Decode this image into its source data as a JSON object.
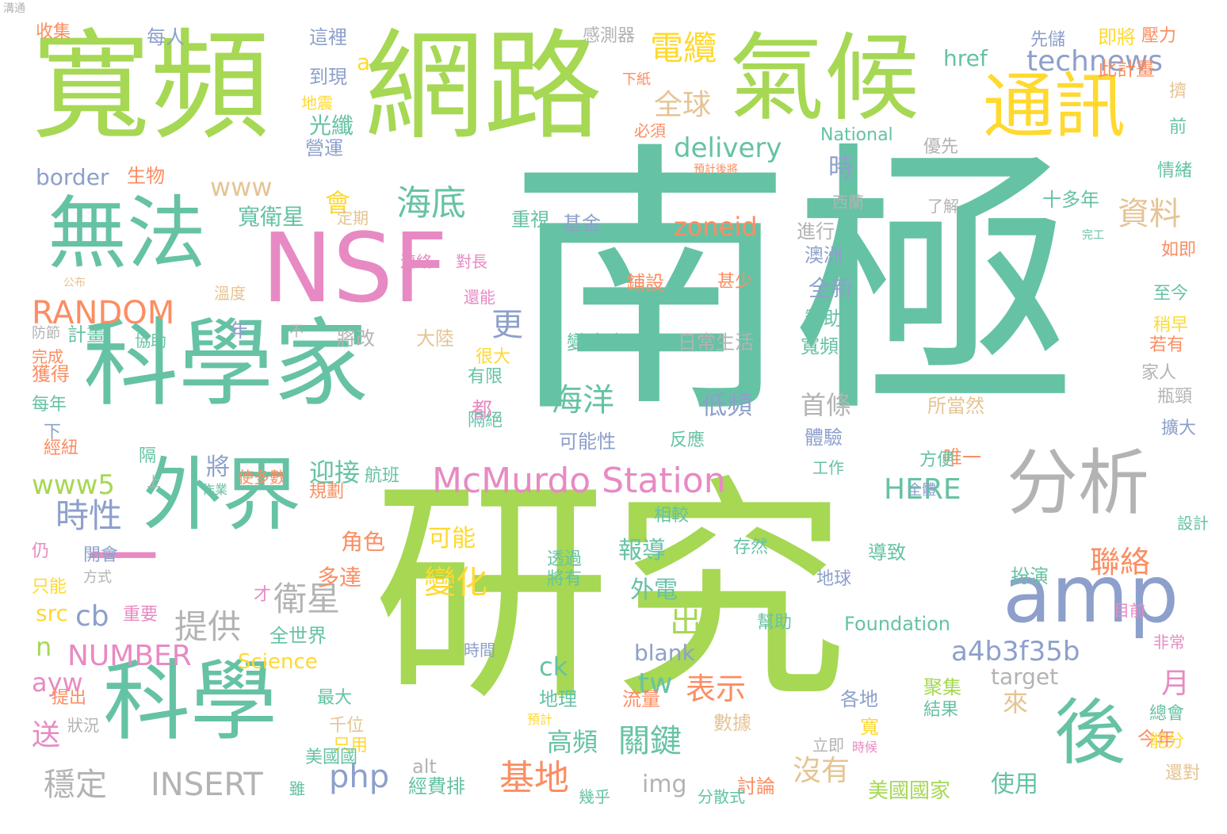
{
  "palette": {
    "teal": "#66c2a5",
    "green": "#a6d854",
    "pink": "#e78ac3",
    "blue": "#8da0cb",
    "orange": "#fc8d62",
    "yellow": "#ffd92f",
    "tan": "#e5c494",
    "gray": "#b3b3b3"
  },
  "words": [
    {
      "text": "南極",
      "color": "teal"
    },
    {
      "text": "研究",
      "color": "green"
    },
    {
      "text": "寬頻",
      "color": "green"
    },
    {
      "text": "網路",
      "color": "green"
    },
    {
      "text": "氣候",
      "color": "green"
    },
    {
      "text": "科學家",
      "color": "teal"
    },
    {
      "text": "科學",
      "color": "teal"
    },
    {
      "text": "NSF",
      "color": "pink"
    },
    {
      "text": "無法",
      "color": "teal"
    },
    {
      "text": "外界",
      "color": "teal"
    },
    {
      "text": "通訊",
      "color": "yellow"
    },
    {
      "text": "分析",
      "color": "gray"
    },
    {
      "text": "後",
      "color": "teal"
    },
    {
      "text": "amp",
      "color": "blue"
    },
    {
      "text": "McMurdo Station",
      "color": "pink"
    },
    {
      "text": "一",
      "color": "pink"
    },
    {
      "text": "technews",
      "color": "blue"
    },
    {
      "text": "電纜",
      "color": "yellow"
    },
    {
      "text": "全球",
      "color": "tan"
    },
    {
      "text": "delivery",
      "color": "teal"
    },
    {
      "text": "海底",
      "color": "teal"
    },
    {
      "text": "資料",
      "color": "tan"
    },
    {
      "text": "RANDOM",
      "color": "orange"
    },
    {
      "text": "海洋",
      "color": "teal"
    },
    {
      "text": "a4b3f35b",
      "color": "blue"
    },
    {
      "text": "時性",
      "color": "blue"
    },
    {
      "text": "NUMBER",
      "color": "pink"
    },
    {
      "text": "INSERT",
      "color": "gray"
    },
    {
      "text": "php",
      "color": "blue"
    },
    {
      "text": "基地",
      "color": "orange"
    },
    {
      "text": "變化",
      "color": "yellow"
    },
    {
      "text": "衛星",
      "color": "gray"
    },
    {
      "text": "提供",
      "color": "gray"
    },
    {
      "text": "表示",
      "color": "orange"
    },
    {
      "text": "關鍵",
      "color": "teal"
    },
    {
      "text": "沒有",
      "color": "tan"
    },
    {
      "text": "聯絡",
      "color": "orange"
    },
    {
      "text": "www5",
      "color": "green"
    },
    {
      "text": "HERE",
      "color": "teal"
    },
    {
      "text": "穩定",
      "color": "gray"
    },
    {
      "text": "cb",
      "color": "blue"
    },
    {
      "text": "tw",
      "color": "teal"
    },
    {
      "text": "zoneid",
      "color": "orange"
    },
    {
      "text": "www",
      "color": "tan"
    },
    {
      "text": "border",
      "color": "blue"
    },
    {
      "text": "a",
      "color": "yellow"
    },
    {
      "text": "href",
      "color": "teal"
    },
    {
      "text": "時",
      "color": "blue"
    },
    {
      "text": "會",
      "color": "yellow"
    },
    {
      "text": "寬衛星",
      "color": "teal"
    },
    {
      "text": "全新",
      "color": "blue"
    },
    {
      "text": "光纖",
      "color": "teal"
    },
    {
      "text": "更",
      "color": "blue"
    },
    {
      "text": "低頻",
      "color": "blue"
    },
    {
      "text": "高頻",
      "color": "teal"
    },
    {
      "text": "首條",
      "color": "gray"
    },
    {
      "text": "出",
      "color": "green"
    },
    {
      "text": "迎接",
      "color": "teal"
    },
    {
      "text": "報導",
      "color": "teal"
    },
    {
      "text": "外電",
      "color": "teal"
    },
    {
      "text": "將",
      "color": "blue"
    },
    {
      "text": "可能",
      "color": "yellow"
    },
    {
      "text": "角色",
      "color": "orange"
    },
    {
      "text": "多達",
      "color": "orange"
    },
    {
      "text": "月",
      "color": "pink"
    },
    {
      "text": "來",
      "color": "tan"
    },
    {
      "text": "使用",
      "color": "teal"
    },
    {
      "text": "美國國家",
      "color": "green"
    },
    {
      "text": "target",
      "color": "gray"
    },
    {
      "text": "ck",
      "color": "teal"
    },
    {
      "text": "blank",
      "color": "blue"
    },
    {
      "text": "n",
      "color": "green"
    },
    {
      "text": "src",
      "color": "yellow"
    },
    {
      "text": "ayw",
      "color": "pink"
    },
    {
      "text": "送",
      "color": "pink"
    },
    {
      "text": "img",
      "color": "gray"
    },
    {
      "text": "alt",
      "color": "gray"
    },
    {
      "text": "Foundation",
      "color": "teal"
    },
    {
      "text": "National",
      "color": "teal"
    },
    {
      "text": "Science",
      "color": "yellow"
    },
    {
      "text": "十多年",
      "color": "teal"
    },
    {
      "text": "進行",
      "color": "gray"
    },
    {
      "text": "澳洲",
      "color": "blue"
    },
    {
      "text": "贊助",
      "color": "teal"
    },
    {
      "text": "寬頻",
      "color": "teal"
    },
    {
      "text": "體驗",
      "color": "blue"
    },
    {
      "text": "扮演",
      "color": "teal"
    },
    {
      "text": "地理",
      "color": "teal"
    },
    {
      "text": "各地",
      "color": "blue"
    },
    {
      "text": "重視",
      "color": "teal"
    },
    {
      "text": "基金",
      "color": "blue"
    },
    {
      "text": "鋪設",
      "color": "orange"
    },
    {
      "text": "甚少",
      "color": "orange"
    },
    {
      "text": "變冰凍",
      "color": "teal"
    },
    {
      "text": "日常生活",
      "color": "gray"
    },
    {
      "text": "可能性",
      "color": "blue"
    },
    {
      "text": "反應",
      "color": "teal"
    },
    {
      "text": "唯一",
      "color": "orange"
    },
    {
      "text": "所當然",
      "color": "tan"
    },
    {
      "text": "計畫",
      "color": "teal"
    },
    {
      "text": "年",
      "color": "blue"
    },
    {
      "text": "將改",
      "color": "gray"
    },
    {
      "text": "大陸",
      "color": "tan"
    },
    {
      "text": "全世界",
      "color": "teal"
    },
    {
      "text": "經費排",
      "color": "teal"
    },
    {
      "text": "討論",
      "color": "orange"
    },
    {
      "text": "流量",
      "color": "orange"
    },
    {
      "text": "數據",
      "color": "tan"
    },
    {
      "text": "聚集",
      "color": "green"
    },
    {
      "text": "結果",
      "color": "teal"
    },
    {
      "text": "寬",
      "color": "yellow"
    },
    {
      "text": "今年",
      "color": "orange"
    },
    {
      "text": "總會",
      "color": "teal"
    },
    {
      "text": "能分",
      "color": "yellow"
    },
    {
      "text": "生物",
      "color": "orange"
    },
    {
      "text": "營運",
      "color": "blue"
    },
    {
      "text": "到現",
      "color": "blue"
    },
    {
      "text": "這裡",
      "color": "blue"
    },
    {
      "text": "每人",
      "color": "blue"
    },
    {
      "text": "收集",
      "color": "orange"
    },
    {
      "text": "感測器",
      "color": "gray"
    },
    {
      "text": "先儲",
      "color": "blue"
    },
    {
      "text": "即將",
      "color": "yellow"
    },
    {
      "text": "壓力",
      "color": "orange"
    },
    {
      "text": "此計畫",
      "color": "orange"
    },
    {
      "text": "擠",
      "color": "tan"
    },
    {
      "text": "前",
      "color": "teal"
    },
    {
      "text": "情緒",
      "color": "teal"
    },
    {
      "text": "如即",
      "color": "orange"
    },
    {
      "text": "至今",
      "color": "teal"
    },
    {
      "text": "稍早",
      "color": "yellow"
    },
    {
      "text": "若有",
      "color": "orange"
    },
    {
      "text": "瓶頸",
      "color": "gray"
    },
    {
      "text": "擴大",
      "color": "blue"
    },
    {
      "text": "非常",
      "color": "pink"
    },
    {
      "text": "目前",
      "color": "pink"
    },
    {
      "text": "獲得",
      "color": "orange"
    },
    {
      "text": "每年",
      "color": "teal"
    },
    {
      "text": "下",
      "color": "blue"
    },
    {
      "text": "經紐",
      "color": "orange"
    },
    {
      "text": "仍",
      "color": "pink"
    },
    {
      "text": "只能",
      "color": "yellow"
    },
    {
      "text": "提出",
      "color": "orange"
    },
    {
      "text": "狀況",
      "color": "gray"
    },
    {
      "text": "重要",
      "color": "pink"
    },
    {
      "text": "最大",
      "color": "teal"
    },
    {
      "text": "千位",
      "color": "tan"
    },
    {
      "text": "只用",
      "color": "yellow"
    },
    {
      "text": "時間",
      "color": "blue"
    },
    {
      "text": "相較",
      "color": "teal"
    },
    {
      "text": "存然",
      "color": "teal"
    },
    {
      "text": "導致",
      "color": "teal"
    },
    {
      "text": "地球",
      "color": "blue"
    },
    {
      "text": "幫助",
      "color": "teal"
    },
    {
      "text": "透過",
      "color": "teal"
    },
    {
      "text": "將有",
      "color": "teal"
    },
    {
      "text": "使多數",
      "color": "orange"
    },
    {
      "text": "規劃",
      "color": "orange"
    },
    {
      "text": "航班",
      "color": "teal"
    },
    {
      "text": "工作",
      "color": "teal"
    },
    {
      "text": "方便",
      "color": "teal"
    },
    {
      "text": "有限",
      "color": "teal"
    },
    {
      "text": "隔絕",
      "color": "teal"
    },
    {
      "text": "很大",
      "color": "yellow"
    },
    {
      "text": "協助",
      "color": "teal"
    },
    {
      "text": "不",
      "color": "gray"
    },
    {
      "text": "完成",
      "color": "orange"
    },
    {
      "text": "防節",
      "color": "gray"
    },
    {
      "text": "溫度",
      "color": "tan"
    },
    {
      "text": "還能",
      "color": "pink"
    },
    {
      "text": "對長",
      "color": "pink"
    },
    {
      "text": "連絡",
      "color": "pink"
    },
    {
      "text": "定期",
      "color": "tan"
    },
    {
      "text": "西蘭",
      "color": "gray"
    },
    {
      "text": "了解",
      "color": "gray"
    },
    {
      "text": "必須",
      "color": "orange"
    },
    {
      "text": "優先",
      "color": "gray"
    },
    {
      "text": "地震",
      "color": "yellow"
    },
    {
      "text": "下紙",
      "color": "orange"
    },
    {
      "text": "都",
      "color": "pink"
    },
    {
      "text": "隔",
      "color": "teal"
    },
    {
      "text": "開會",
      "color": "blue"
    },
    {
      "text": "家人",
      "color": "gray"
    },
    {
      "text": "設計",
      "color": "teal"
    },
    {
      "text": "美國國",
      "color": "teal"
    },
    {
      "text": "雖",
      "color": "teal"
    },
    {
      "text": "幾乎",
      "color": "teal"
    },
    {
      "text": "分散式",
      "color": "teal"
    },
    {
      "text": "立即",
      "color": "gray"
    },
    {
      "text": "還對",
      "color": "tan"
    },
    {
      "text": "才",
      "color": "pink"
    },
    {
      "text": "上",
      "color": "gray"
    },
    {
      "text": "方式",
      "color": "gray"
    },
    {
      "text": "作業",
      "color": "teal"
    },
    {
      "text": "預計",
      "color": "yellow"
    },
    {
      "text": "時候",
      "color": "pink"
    },
    {
      "text": "全體",
      "color": "blue"
    },
    {
      "text": "完工",
      "color": "teal"
    },
    {
      "text": "公布",
      "color": "tan"
    },
    {
      "text": "預計後將",
      "color": "orange"
    },
    {
      "text": "溝通",
      "color": "gray"
    }
  ]
}
